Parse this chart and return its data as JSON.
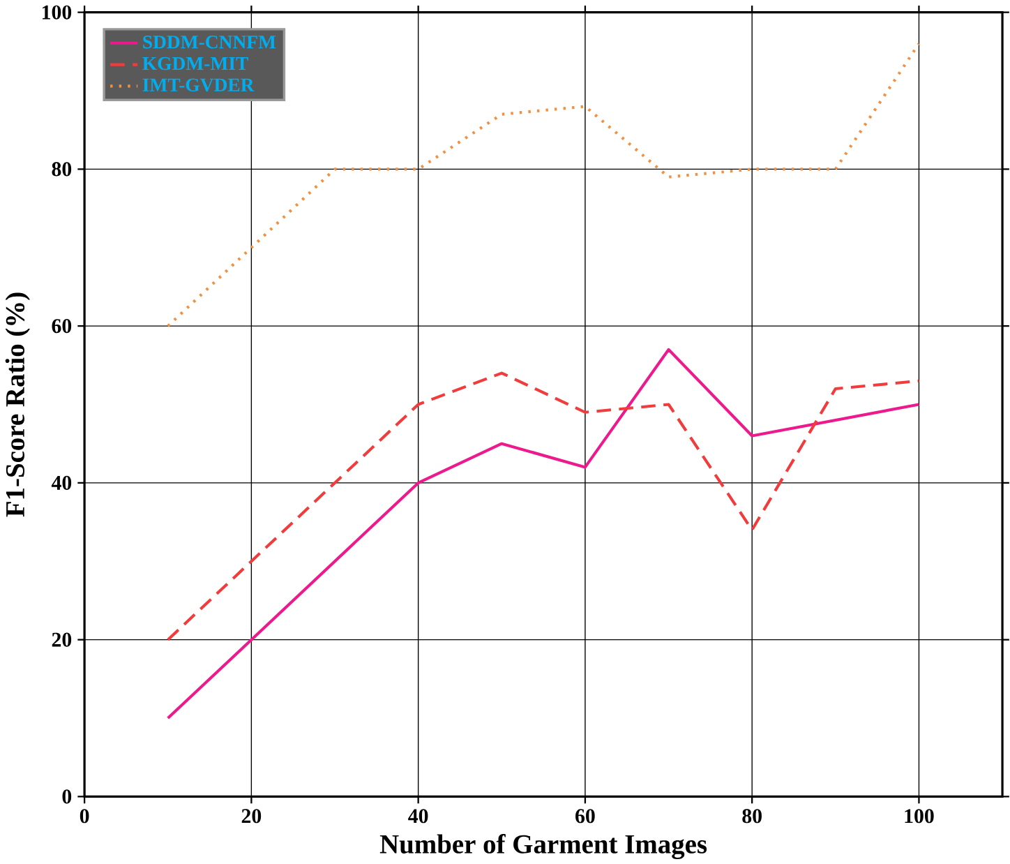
{
  "chart_data": {
    "type": "line",
    "xlabel": "Number of Garment Images",
    "ylabel": "F1-Score Ratio (%)",
    "x": [
      10,
      20,
      30,
      40,
      50,
      60,
      70,
      80,
      90,
      100
    ],
    "series": [
      {
        "name": "SDDM-CNNFM",
        "color": "#ec1a8c",
        "line_style": "solid",
        "x": [
          10,
          20,
          40,
          50,
          60,
          70,
          80,
          100
        ],
        "values": [
          10,
          20,
          40,
          45,
          42,
          57,
          46,
          50
        ]
      },
      {
        "name": "KGDM-MIT",
        "color": "#f03c3c",
        "line_style": "dashed",
        "values": [
          20,
          30,
          40,
          50,
          54,
          49,
          50,
          34,
          52,
          53
        ]
      },
      {
        "name": "IMT-GVDER",
        "color": "#f09040",
        "line_style": "dotted",
        "values": [
          60,
          70,
          80,
          80,
          87,
          88,
          79,
          80,
          80,
          96
        ]
      }
    ],
    "xlim": [
      0,
      110
    ],
    "ylim": [
      0,
      100
    ],
    "xticks": [
      0,
      20,
      40,
      60,
      80,
      100
    ],
    "yticks": [
      0,
      20,
      40,
      60,
      80,
      100
    ],
    "grid": true,
    "legend": "top left"
  }
}
